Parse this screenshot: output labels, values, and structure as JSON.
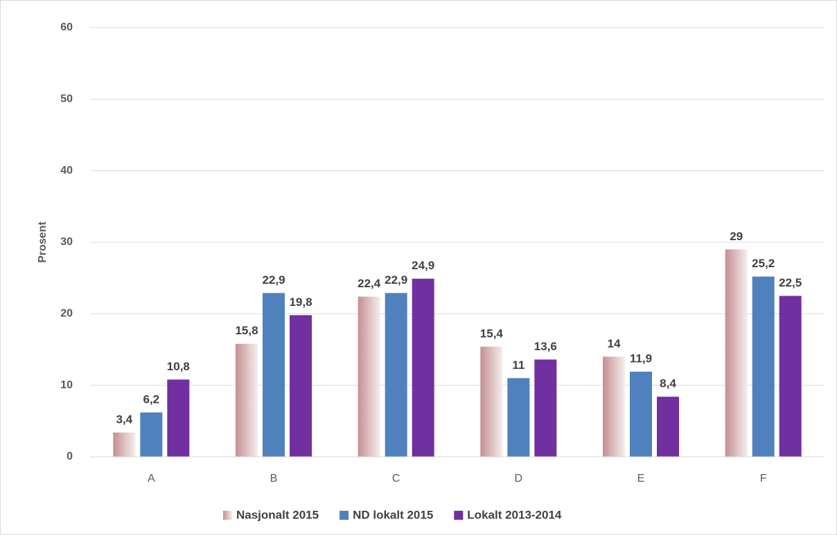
{
  "chart_data": {
    "type": "bar",
    "y_label": "Prosent",
    "categories": [
      "A",
      "B",
      "C",
      "D",
      "E",
      "F"
    ],
    "series": [
      {
        "name": "Nasjonalt 2015",
        "color": "#c48f92",
        "values": [
          3.4,
          15.8,
          22.4,
          15.4,
          14,
          29
        ],
        "value_labels": [
          "3,4",
          "15,8",
          "22,4",
          "15,4",
          "14",
          "29"
        ]
      },
      {
        "name": "ND lokalt 2015",
        "color": "#4f81bd",
        "values": [
          6.2,
          22.9,
          22.9,
          11,
          11.9,
          25.2
        ],
        "value_labels": [
          "6,2",
          "22,9",
          "22,9",
          "11",
          "11,9",
          "25,2"
        ]
      },
      {
        "name": "Lokalt 2013-2014",
        "color": "#7030a0",
        "values": [
          10.8,
          19.8,
          24.9,
          13.6,
          8.4,
          22.5
        ],
        "value_labels": [
          "10,8",
          "19,8",
          "24,9",
          "13,6",
          "8,4",
          "22,5"
        ]
      }
    ],
    "ylim": [
      0,
      60
    ],
    "yticks": [
      0,
      10,
      20,
      30,
      40,
      50,
      60
    ],
    "grid": true,
    "legend": "bottom"
  }
}
